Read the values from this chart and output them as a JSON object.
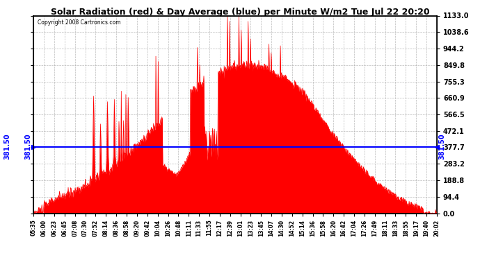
{
  "title": "Solar Radiation (red) & Day Average (blue) per Minute W/m2 Tue Jul 22 20:20",
  "copyright": "Copyright 2008 Cartronics.com",
  "y_max": 1133.0,
  "y_min": 0.0,
  "y_ticks": [
    0.0,
    94.4,
    188.8,
    283.2,
    377.7,
    472.1,
    566.5,
    660.9,
    755.3,
    849.8,
    944.2,
    1038.6,
    1133.0
  ],
  "day_average": 381.5,
  "bg_color": "#ffffff",
  "fill_color": "#ff0000",
  "avg_line_color": "#0000ff",
  "x_tick_labels": [
    "05:35",
    "06:00",
    "06:23",
    "06:45",
    "07:08",
    "07:30",
    "07:52",
    "08:14",
    "08:36",
    "08:58",
    "09:20",
    "09:42",
    "10:04",
    "10:26",
    "10:48",
    "11:11",
    "11:33",
    "11:55",
    "12:17",
    "12:39",
    "13:01",
    "13:23",
    "13:45",
    "14:07",
    "14:30",
    "14:52",
    "15:14",
    "15:36",
    "15:58",
    "16:20",
    "16:42",
    "17:04",
    "17:26",
    "17:49",
    "18:11",
    "18:33",
    "18:55",
    "19:17",
    "19:40",
    "20:02"
  ],
  "n_points": 875,
  "seed": 10
}
